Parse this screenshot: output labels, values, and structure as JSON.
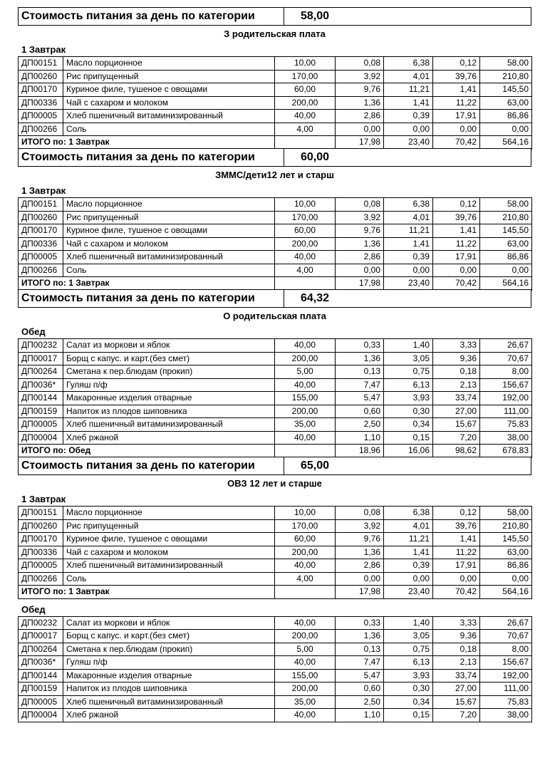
{
  "report": {
    "cost_label": "Стоимость питания за день по категории",
    "sections": [
      {
        "daily_cost": "58,00",
        "category": "З родительская плата",
        "meals": [
          {
            "title": "1 Завтрак",
            "rows": [
              {
                "code": "ДП00151",
                "name": "Масло порционное",
                "qty": "10,00",
                "v1": "0,08",
                "v2": "6,38",
                "v3": "0,12",
                "v4": "58,00"
              },
              {
                "code": "ДП00260",
                "name": "Рис припущенный",
                "qty": "170,00",
                "v1": "3,92",
                "v2": "4,01",
                "v3": "39,76",
                "v4": "210,80"
              },
              {
                "code": "ДП00170",
                "name": "Куриное филе, тушеное с овощами",
                "qty": "60,00",
                "v1": "9,76",
                "v2": "11,21",
                "v3": "1,41",
                "v4": "145,50"
              },
              {
                "code": "ДП00336",
                "name": "Чай с сахаром и молоком",
                "qty": "200,00",
                "v1": "1,36",
                "v2": "1,41",
                "v3": "11,22",
                "v4": "63,00"
              },
              {
                "code": "ДП00005",
                "name": "Хлеб пшеничный витаминизированный",
                "qty": "40,00",
                "v1": "2,86",
                "v2": "0,39",
                "v3": "17,91",
                "v4": "86,86"
              },
              {
                "code": "ДП00266",
                "name": "Соль",
                "qty": "4,00",
                "v1": "0,00",
                "v2": "0,00",
                "v3": "0,00",
                "v4": "0,00"
              }
            ],
            "total": {
              "label": "ИТОГО по: 1 Завтрак",
              "v1": "17,98",
              "v2": "23,40",
              "v3": "70,42",
              "v4": "564,16"
            }
          }
        ]
      },
      {
        "daily_cost": "60,00",
        "category": "ЗММС/дети12 лет и старш",
        "meals": [
          {
            "title": "1 Завтрак",
            "rows": [
              {
                "code": "ДП00151",
                "name": "Масло порционное",
                "qty": "10,00",
                "v1": "0,08",
                "v2": "6,38",
                "v3": "0,12",
                "v4": "58,00"
              },
              {
                "code": "ДП00260",
                "name": "Рис припущенный",
                "qty": "170,00",
                "v1": "3,92",
                "v2": "4,01",
                "v3": "39,76",
                "v4": "210,80"
              },
              {
                "code": "ДП00170",
                "name": "Куриное филе, тушеное с овощами",
                "qty": "60,00",
                "v1": "9,76",
                "v2": "11,21",
                "v3": "1,41",
                "v4": "145,50"
              },
              {
                "code": "ДП00336",
                "name": "Чай с сахаром и молоком",
                "qty": "200,00",
                "v1": "1,36",
                "v2": "1,41",
                "v3": "11,22",
                "v4": "63,00"
              },
              {
                "code": "ДП00005",
                "name": "Хлеб пшеничный витаминизированный",
                "qty": "40,00",
                "v1": "2,86",
                "v2": "0,39",
                "v3": "17,91",
                "v4": "86,86"
              },
              {
                "code": "ДП00266",
                "name": "Соль",
                "qty": "4,00",
                "v1": "0,00",
                "v2": "0,00",
                "v3": "0,00",
                "v4": "0,00"
              }
            ],
            "total": {
              "label": "ИТОГО по: 1 Завтрак",
              "v1": "17,98",
              "v2": "23,40",
              "v3": "70,42",
              "v4": "564,16"
            }
          }
        ]
      },
      {
        "daily_cost": "64,32",
        "category": "О родительская плата",
        "meals": [
          {
            "title": "Обед",
            "rows": [
              {
                "code": "ДП00232",
                "name": "Салат из моркови и яблок",
                "qty": "40,00",
                "v1": "0,33",
                "v2": "1,40",
                "v3": "3,33",
                "v4": "26,67"
              },
              {
                "code": "ДП00017",
                "name": "Борщ с капус. и карт.(без смет)",
                "qty": "200,00",
                "v1": "1,36",
                "v2": "3,05",
                "v3": "9,36",
                "v4": "70,67"
              },
              {
                "code": "ДП00264",
                "name": "Сметана к пер.блюдам (прокип)",
                "qty": "5,00",
                "v1": "0,13",
                "v2": "0,75",
                "v3": "0,18",
                "v4": "8,00"
              },
              {
                "code": "ДП0036*",
                "name": "Гуляш п/ф",
                "qty": "40,00",
                "v1": "7,47",
                "v2": "6,13",
                "v3": "2,13",
                "v4": "156,67"
              },
              {
                "code": "ДП00144",
                "name": "Макаронные изделия отварные",
                "qty": "155,00",
                "v1": "5,47",
                "v2": "3,93",
                "v3": "33,74",
                "v4": "192,00"
              },
              {
                "code": "ДП00159",
                "name": "Напиток из плодов шиповника",
                "qty": "200,00",
                "v1": "0,60",
                "v2": "0,30",
                "v3": "27,00",
                "v4": "111,00"
              },
              {
                "code": "ДП00005",
                "name": "Хлеб пшеничный витаминизированный",
                "qty": "35,00",
                "v1": "2,50",
                "v2": "0,34",
                "v3": "15,67",
                "v4": "75,83"
              },
              {
                "code": "ДП00004",
                "name": "Хлеб ржаной",
                "qty": "40,00",
                "v1": "1,10",
                "v2": "0,15",
                "v3": "7,20",
                "v4": "38,00"
              }
            ],
            "total": {
              "label": "ИТОГО по: Обед",
              "v1": "18,96",
              "v2": "16,06",
              "v3": "98,62",
              "v4": "678,83"
            }
          }
        ]
      },
      {
        "daily_cost": "65,00",
        "category": "ОВЗ 12 лет и старше",
        "meals": [
          {
            "title": "1 Завтрак",
            "rows": [
              {
                "code": "ДП00151",
                "name": "Масло порционное",
                "qty": "10,00",
                "v1": "0,08",
                "v2": "6,38",
                "v3": "0,12",
                "v4": "58,00"
              },
              {
                "code": "ДП00260",
                "name": "Рис припущенный",
                "qty": "170,00",
                "v1": "3,92",
                "v2": "4,01",
                "v3": "39,76",
                "v4": "210,80"
              },
              {
                "code": "ДП00170",
                "name": "Куриное филе, тушеное с овощами",
                "qty": "60,00",
                "v1": "9,76",
                "v2": "11,21",
                "v3": "1,41",
                "v4": "145,50"
              },
              {
                "code": "ДП00336",
                "name": "Чай с сахаром и молоком",
                "qty": "200,00",
                "v1": "1,36",
                "v2": "1,41",
                "v3": "11,22",
                "v4": "63,00"
              },
              {
                "code": "ДП00005",
                "name": "Хлеб пшеничный витаминизированный",
                "qty": "40,00",
                "v1": "2,86",
                "v2": "0,39",
                "v3": "17,91",
                "v4": "86,86"
              },
              {
                "code": "ДП00266",
                "name": "Соль",
                "qty": "4,00",
                "v1": "0,00",
                "v2": "0,00",
                "v3": "0,00",
                "v4": "0,00"
              }
            ],
            "total": {
              "label": "ИТОГО по: 1 Завтрак",
              "v1": "17,98",
              "v2": "23,40",
              "v3": "70,42",
              "v4": "564,16"
            }
          },
          {
            "title": "Обед",
            "rows": [
              {
                "code": "ДП00232",
                "name": "Салат из моркови и яблок",
                "qty": "40,00",
                "v1": "0,33",
                "v2": "1,40",
                "v3": "3,33",
                "v4": "26,67"
              },
              {
                "code": "ДП00017",
                "name": "Борщ с капус. и карт.(без смет)",
                "qty": "200,00",
                "v1": "1,36",
                "v2": "3,05",
                "v3": "9,36",
                "v4": "70,67"
              },
              {
                "code": "ДП00264",
                "name": "Сметана к пер.блюдам (прокип)",
                "qty": "5,00",
                "v1": "0,13",
                "v2": "0,75",
                "v3": "0,18",
                "v4": "8,00"
              },
              {
                "code": "ДП0036*",
                "name": "Гуляш п/ф",
                "qty": "40,00",
                "v1": "7,47",
                "v2": "6,13",
                "v3": "2,13",
                "v4": "156,67"
              },
              {
                "code": "ДП00144",
                "name": "Макаронные изделия отварные",
                "qty": "155,00",
                "v1": "5,47",
                "v2": "3,93",
                "v3": "33,74",
                "v4": "192,00"
              },
              {
                "code": "ДП00159",
                "name": "Напиток из плодов шиповника",
                "qty": "200,00",
                "v1": "0,60",
                "v2": "0,30",
                "v3": "27,00",
                "v4": "111,00"
              },
              {
                "code": "ДП00005",
                "name": "Хлеб пшеничный витаминизированный",
                "qty": "35,00",
                "v1": "2,50",
                "v2": "0,34",
                "v3": "15,67",
                "v4": "75,83"
              },
              {
                "code": "ДП00004",
                "name": "Хлеб ржаной",
                "qty": "40,00",
                "v1": "1,10",
                "v2": "0,15",
                "v3": "7,20",
                "v4": "38,00"
              }
            ]
          }
        ]
      }
    ]
  }
}
